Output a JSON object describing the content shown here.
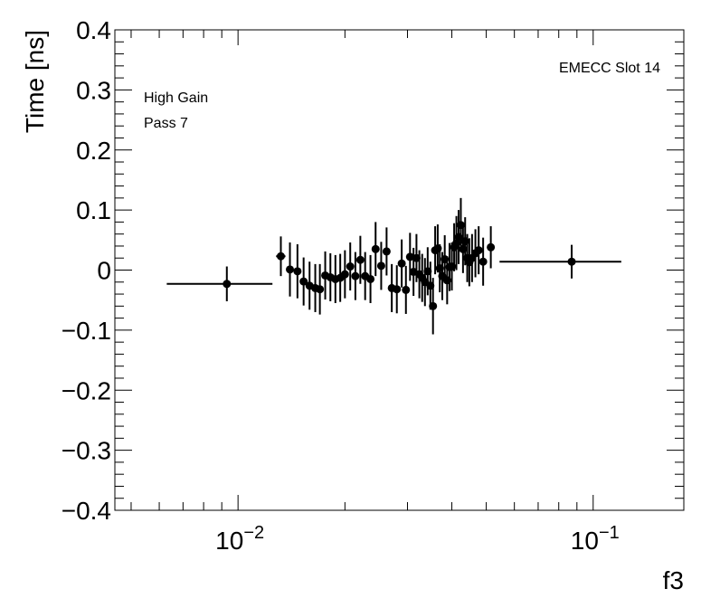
{
  "chart_data": {
    "type": "scatter",
    "title": "",
    "xlabel": "f3",
    "ylabel": "Time [ns]",
    "x_scale": "log",
    "xlim": [
      0.0045,
      0.18
    ],
    "ylim": [
      -0.4,
      0.4
    ],
    "grid": false,
    "y_ticks": [
      -0.4,
      -0.3,
      -0.2,
      -0.1,
      0,
      0.1,
      0.2,
      0.3,
      0.4
    ],
    "y_tick_labels": [
      "−0.4",
      "−0.3",
      "−0.2",
      "−0.1",
      "0",
      "0.1",
      "0.2",
      "0.3",
      "0.4"
    ],
    "x_major_ticks": [
      0.01,
      0.1
    ],
    "x_tick_labels": [
      {
        "base": "10",
        "exp": "−2"
      },
      {
        "base": "10",
        "exp": "−1"
      }
    ],
    "annotations": {
      "top_right": "EMECC Slot 14",
      "line1": "High Gain",
      "line2": "Pass 7"
    },
    "marker_color": "#000000",
    "points": [
      {
        "x": 0.0093,
        "y": -0.023,
        "yerr": 0.029,
        "xlo": 0.0063,
        "xhi": 0.0125
      },
      {
        "x": 0.0132,
        "y": 0.023,
        "yerr": 0.033,
        "xlo": 0.0128,
        "xhi": 0.0136
      },
      {
        "x": 0.014,
        "y": 0.001,
        "yerr": 0.045
      },
      {
        "x": 0.0147,
        "y": -0.002,
        "yerr": 0.045
      },
      {
        "x": 0.0153,
        "y": -0.019,
        "yerr": 0.04
      },
      {
        "x": 0.0159,
        "y": -0.026,
        "yerr": 0.04
      },
      {
        "x": 0.0165,
        "y": -0.03,
        "yerr": 0.04
      },
      {
        "x": 0.017,
        "y": -0.032,
        "yerr": 0.042
      },
      {
        "x": 0.0176,
        "y": -0.009,
        "yerr": 0.04
      },
      {
        "x": 0.0182,
        "y": -0.012,
        "yerr": 0.04
      },
      {
        "x": 0.0188,
        "y": -0.015,
        "yerr": 0.04
      },
      {
        "x": 0.0194,
        "y": -0.013,
        "yerr": 0.04
      },
      {
        "x": 0.02,
        "y": -0.007,
        "yerr": 0.04
      },
      {
        "x": 0.0207,
        "y": 0.006,
        "yerr": 0.04
      },
      {
        "x": 0.0214,
        "y": -0.01,
        "yerr": 0.04
      },
      {
        "x": 0.0221,
        "y": 0.017,
        "yerr": 0.04
      },
      {
        "x": 0.0228,
        "y": -0.01,
        "yerr": 0.04
      },
      {
        "x": 0.0236,
        "y": -0.015,
        "yerr": 0.04
      },
      {
        "x": 0.0244,
        "y": 0.035,
        "yerr": 0.045
      },
      {
        "x": 0.0253,
        "y": 0.007,
        "yerr": 0.04
      },
      {
        "x": 0.0262,
        "y": 0.031,
        "yerr": 0.04
      },
      {
        "x": 0.0271,
        "y": -0.03,
        "yerr": 0.04
      },
      {
        "x": 0.028,
        "y": -0.032,
        "yerr": 0.04
      },
      {
        "x": 0.0289,
        "y": 0.011,
        "yerr": 0.04
      },
      {
        "x": 0.0297,
        "y": -0.033,
        "yerr": 0.04
      },
      {
        "x": 0.0305,
        "y": 0.022,
        "yerr": 0.04
      },
      {
        "x": 0.0312,
        "y": -0.003,
        "yerr": 0.04
      },
      {
        "x": 0.0318,
        "y": 0.02,
        "yerr": 0.04
      },
      {
        "x": 0.0324,
        "y": -0.007,
        "yerr": 0.04
      },
      {
        "x": 0.033,
        "y": -0.013,
        "yerr": 0.04
      },
      {
        "x": 0.0336,
        "y": -0.02,
        "yerr": 0.04
      },
      {
        "x": 0.0342,
        "y": -0.002,
        "yerr": 0.04
      },
      {
        "x": 0.0348,
        "y": -0.026,
        "yerr": 0.04
      },
      {
        "x": 0.0354,
        "y": -0.06,
        "yerr": 0.047
      },
      {
        "x": 0.0359,
        "y": 0.033,
        "yerr": 0.04
      },
      {
        "x": 0.0365,
        "y": 0.036,
        "yerr": 0.04
      },
      {
        "x": 0.037,
        "y": 0.003,
        "yerr": 0.04
      },
      {
        "x": 0.0376,
        "y": -0.01,
        "yerr": 0.04
      },
      {
        "x": 0.0382,
        "y": 0.018,
        "yerr": 0.04
      },
      {
        "x": 0.0388,
        "y": -0.017,
        "yerr": 0.04
      },
      {
        "x": 0.0394,
        "y": 0.005,
        "yerr": 0.04
      },
      {
        "x": 0.04,
        "y": 0.006,
        "yerr": 0.04
      },
      {
        "x": 0.0406,
        "y": 0.038,
        "yerr": 0.04
      },
      {
        "x": 0.0412,
        "y": 0.045,
        "yerr": 0.045
      },
      {
        "x": 0.0418,
        "y": 0.055,
        "yerr": 0.045
      },
      {
        "x": 0.0424,
        "y": 0.075,
        "yerr": 0.045
      },
      {
        "x": 0.043,
        "y": 0.035,
        "yerr": 0.04
      },
      {
        "x": 0.0436,
        "y": 0.048,
        "yerr": 0.04
      },
      {
        "x": 0.0442,
        "y": 0.02,
        "yerr": 0.04
      },
      {
        "x": 0.0448,
        "y": 0.013,
        "yerr": 0.04
      },
      {
        "x": 0.0456,
        "y": 0.02,
        "yerr": 0.04
      },
      {
        "x": 0.0466,
        "y": 0.028,
        "yerr": 0.04
      },
      {
        "x": 0.0476,
        "y": 0.033,
        "yerr": 0.04
      },
      {
        "x": 0.049,
        "y": 0.014,
        "yerr": 0.04
      },
      {
        "x": 0.0515,
        "y": 0.038,
        "yerr": 0.035
      },
      {
        "x": 0.087,
        "y": 0.014,
        "yerr": 0.028,
        "xlo": 0.0545,
        "xhi": 0.12
      }
    ]
  }
}
